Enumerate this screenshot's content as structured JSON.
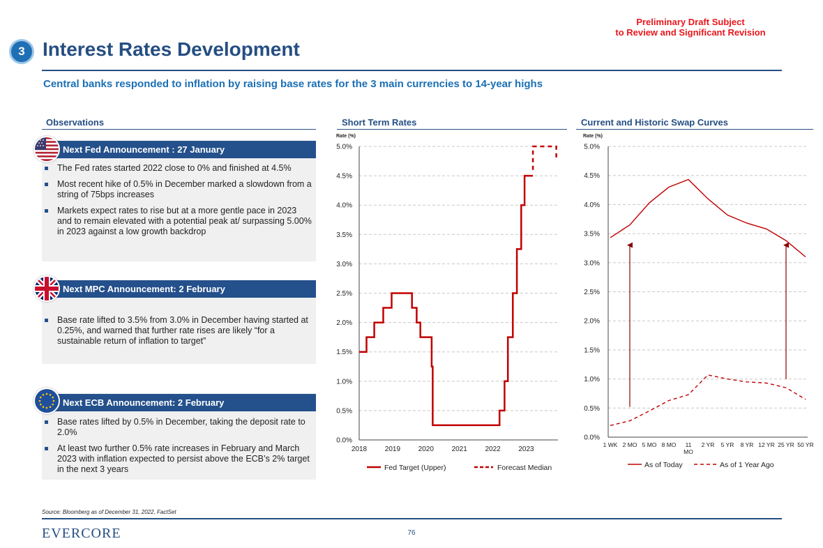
{
  "draft_notice": [
    "Preliminary Draft Subject",
    "to Review and Significant Revision"
  ],
  "section_number": "3",
  "title": "Interest Rates Development",
  "subtitle": "Central banks responded to inflation by raising base rates for the 3 main currencies to 14-year highs",
  "observations": {
    "heading": "Observations",
    "blocks": [
      {
        "flag": "us-flag-icon",
        "announcement": "Next Fed Announcement : 27 January",
        "bullets": [
          "The Fed rates started 2022 close to 0% and finished at 4.5%",
          "Most recent hike of 0.5% in December marked a slowdown from a string of 75bps increases",
          "Markets expect rates to rise but at a more gentle pace in 2023 and to remain elevated with a potential peak at/ surpassing 5.00% in 2023 against a low growth backdrop"
        ]
      },
      {
        "flag": "uk-flag-icon",
        "announcement": "Next MPC Announcement: 2 February",
        "bullets": [
          "Base rate lifted to 3.5% from 3.0% in December having started at 0.25%, and warned that further rate rises are likely “for a sustainable return of inflation to target”"
        ]
      },
      {
        "flag": "eu-flag-icon",
        "announcement": "Next ECB Announcement: 2 February",
        "bullets": [
          "Base rates lifted by 0.5% in December, taking the deposit rate to 2.0%",
          "At least two further 0.5% rate increases in February and March 2023 with inflation expected to persist above the ECB’s 2% target in the next 3 years"
        ]
      }
    ]
  },
  "colors": {
    "navy": "#254e82",
    "accent": "#1a6fb5",
    "series": "#c00000",
    "draft": "#e8161d"
  },
  "chart_data": [
    {
      "type": "line",
      "title": "Short Term Rates",
      "ylabel": "Rate (%)",
      "ylim": [
        0,
        5
      ],
      "yticks": [
        "0.0%",
        "0.5%",
        "1.0%",
        "1.5%",
        "2.0%",
        "2.5%",
        "3.0%",
        "3.5%",
        "4.0%",
        "4.5%",
        "5.0%"
      ],
      "xlim": [
        2018,
        2023.95
      ],
      "xticks": [
        "2018",
        "2019",
        "2020",
        "2021",
        "2022",
        "2023"
      ],
      "grid": true,
      "legend_position": "bottom",
      "series": [
        {
          "name": "Fed Target (Upper)",
          "style": "solid",
          "x": [
            2018,
            2018.22,
            2018.22,
            2018.45,
            2018.45,
            2018.72,
            2018.72,
            2018.97,
            2018.97,
            2019.58,
            2019.58,
            2019.72,
            2019.72,
            2019.83,
            2019.83,
            2020.17,
            2020.17,
            2020.2,
            2020.2,
            2022.2,
            2022.2,
            2022.35,
            2022.35,
            2022.45,
            2022.45,
            2022.6,
            2022.6,
            2022.72,
            2022.72,
            2022.85,
            2022.85,
            2022.95,
            2022.95,
            2023.2
          ],
          "y": [
            1.5,
            1.5,
            1.75,
            1.75,
            2.0,
            2.0,
            2.25,
            2.25,
            2.5,
            2.5,
            2.25,
            2.25,
            2.0,
            2.0,
            1.75,
            1.75,
            1.25,
            1.25,
            0.25,
            0.25,
            0.5,
            0.5,
            1.0,
            1.0,
            1.75,
            1.75,
            2.5,
            2.5,
            3.25,
            3.25,
            4.0,
            4.0,
            4.5,
            4.5
          ]
        },
        {
          "name": "Forecast Median",
          "style": "dashed",
          "x": [
            2023.2,
            2023.2,
            2023.9,
            2023.9
          ],
          "y": [
            4.6,
            5.0,
            5.0,
            4.8
          ]
        }
      ]
    },
    {
      "type": "line",
      "title": "Current and Historic Swap Curves",
      "ylabel": "Rate (%)",
      "ylim": [
        0,
        5
      ],
      "yticks": [
        "0.0%",
        "0.5%",
        "1.0%",
        "1.5%",
        "2.0%",
        "2.5%",
        "3.0%",
        "3.5%",
        "4.0%",
        "4.5%",
        "5.0%"
      ],
      "categories": [
        "1 WK",
        "2 MO",
        "5 MO",
        "8 MO",
        "11 MO",
        "2 YR",
        "5 YR",
        "8 YR",
        "12 YR",
        "25 YR",
        "50 YR"
      ],
      "grid": true,
      "legend_position": "bottom",
      "series": [
        {
          "name": "As of Today",
          "style": "solid",
          "values": [
            3.43,
            3.65,
            4.03,
            4.3,
            4.43,
            4.1,
            3.82,
            3.68,
            3.58,
            3.38,
            3.1
          ]
        },
        {
          "name": "As of 1 Year Ago",
          "style": "dashed",
          "values": [
            0.2,
            0.28,
            0.45,
            0.63,
            0.73,
            1.07,
            1.0,
            0.95,
            0.93,
            0.85,
            0.65
          ]
        }
      ],
      "annotations": [
        {
          "type": "arrow",
          "category": "2 MO",
          "from": 0.52,
          "to": 3.35
        },
        {
          "type": "arrow",
          "category": "25 YR",
          "from": 1.0,
          "to": 3.35
        }
      ]
    }
  ],
  "source": "Source: Bloomberg as of December 31, 2022, FactSet",
  "logo": "EVERCORE",
  "page_number": "76"
}
